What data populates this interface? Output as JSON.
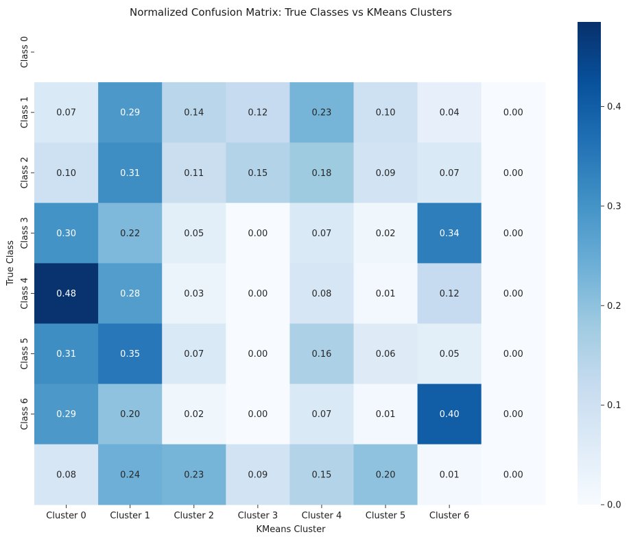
{
  "chart_data": {
    "type": "heatmap",
    "title": "Normalized Confusion Matrix: True Classes vs KMeans Clusters",
    "xlabel": "KMeans Cluster",
    "ylabel": "True Class",
    "x_tick_labels": [
      "Cluster 0",
      "Cluster 1",
      "Cluster 2",
      "Cluster 3",
      "Cluster 4",
      "Cluster 5",
      "Cluster 6",
      ""
    ],
    "y_tick_labels": [
      "Class 0",
      "Class 1",
      "Class 2",
      "Class 3",
      "Class 4",
      "Class 5",
      "Class 6",
      ""
    ],
    "values": [
      [
        null,
        null,
        null,
        null,
        null,
        null,
        null,
        null
      ],
      [
        0.07,
        0.29,
        0.14,
        0.12,
        0.23,
        0.1,
        0.04,
        0.0
      ],
      [
        0.1,
        0.31,
        0.11,
        0.15,
        0.18,
        0.09,
        0.07,
        0.0
      ],
      [
        0.3,
        0.22,
        0.05,
        0.0,
        0.07,
        0.02,
        0.34,
        0.0
      ],
      [
        0.48,
        0.28,
        0.03,
        0.0,
        0.08,
        0.01,
        0.12,
        0.0
      ],
      [
        0.31,
        0.35,
        0.07,
        0.0,
        0.16,
        0.06,
        0.05,
        0.0
      ],
      [
        0.29,
        0.2,
        0.02,
        0.0,
        0.07,
        0.01,
        0.4,
        0.0
      ],
      [
        0.08,
        0.24,
        0.23,
        0.09,
        0.15,
        0.2,
        0.01,
        0.0
      ]
    ],
    "colorbar": {
      "min": 0.0,
      "max": 0.485,
      "ticks": [
        0.0,
        0.1,
        0.2,
        0.3,
        0.4
      ],
      "tick_labels": [
        "0.0",
        "0.1",
        "0.2",
        "0.3",
        "0.4"
      ],
      "colormap": "Blues"
    },
    "grid": false
  }
}
